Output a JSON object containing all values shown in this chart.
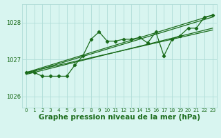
{
  "background_color": "#d8f5f0",
  "plot_bg_color": "#d8f5f0",
  "grid_color": "#b0ddd8",
  "line_color": "#1a6b1a",
  "xlabel": "Graphe pression niveau de la mer (hPa)",
  "xlabel_fontsize": 7.5,
  "xlim": [
    -0.5,
    23.5
  ],
  "ylim": [
    1025.7,
    1028.5
  ],
  "yticks": [
    1026,
    1027,
    1028
  ],
  "xtick_labels": [
    "0",
    "1",
    "2",
    "3",
    "4",
    "5",
    "6",
    "7",
    "8",
    "9",
    "10",
    "11",
    "12",
    "13",
    "14",
    "15",
    "16",
    "17",
    "18",
    "19",
    "20",
    "21",
    "22",
    "23"
  ],
  "series1_x": [
    0,
    1,
    2,
    3,
    4,
    5,
    6,
    7,
    8,
    9,
    10,
    11,
    12,
    13,
    14,
    15,
    16,
    17,
    18,
    19,
    20,
    21,
    22,
    23
  ],
  "series1_y": [
    1026.65,
    1026.65,
    1026.55,
    1026.55,
    1026.55,
    1026.55,
    1026.85,
    1027.1,
    1027.55,
    1027.75,
    1027.5,
    1027.5,
    1027.55,
    1027.55,
    1027.6,
    1027.45,
    1027.75,
    1027.1,
    1027.55,
    1027.65,
    1027.85,
    1027.85,
    1028.15,
    1028.2
  ],
  "trend1_x": [
    0,
    23
  ],
  "trend1_y": [
    1026.65,
    1027.8
  ],
  "trend2_x": [
    0,
    23
  ],
  "trend2_y": [
    1026.6,
    1027.85
  ],
  "trend3_x": [
    0,
    23
  ],
  "trend3_y": [
    1026.65,
    1028.2
  ],
  "trend4_x": [
    0,
    23
  ],
  "trend4_y": [
    1026.62,
    1028.15
  ]
}
